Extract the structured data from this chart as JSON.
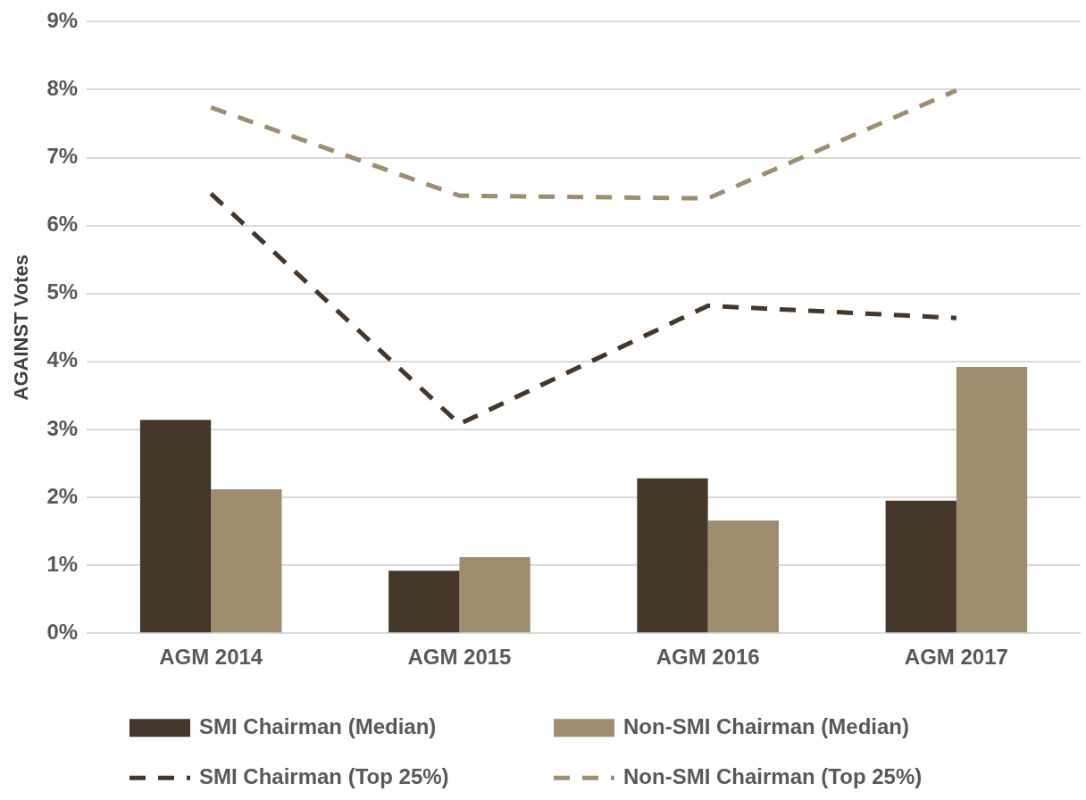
{
  "chart_data": {
    "type": "bar",
    "ylabel": "AGAINST Votes",
    "categories": [
      "AGM 2014",
      "AGM 2015",
      "AGM 2016",
      "AGM 2017"
    ],
    "series": [
      {
        "name": "SMI Chairman (Median)",
        "color": "#45372a",
        "values": [
          3.14,
          0.92,
          2.28,
          1.95
        ]
      },
      {
        "name": "Non-SMI Chairman (Median)",
        "color": "#9e8d6f",
        "values": [
          2.12,
          1.12,
          1.66,
          3.92
        ]
      },
      {
        "name": "SMI Chairman (Top 25%)",
        "type": "line",
        "line_style": "dashed",
        "color": "#45372a",
        "values": [
          6.47,
          3.08,
          4.82,
          4.64
        ]
      },
      {
        "name": "Non-SMI Chairman (Top 25%)",
        "type": "line",
        "line_style": "dashed",
        "color": "#9e8d6f",
        "values": [
          7.74,
          6.44,
          6.4,
          7.99
        ]
      }
    ],
    "ylim": [
      0,
      9
    ],
    "yticks": [
      {
        "value": 0,
        "label": "0%"
      },
      {
        "value": 1,
        "label": "1%"
      },
      {
        "value": 2,
        "label": "2%"
      },
      {
        "value": 3,
        "label": "3%"
      },
      {
        "value": 4,
        "label": "4%"
      },
      {
        "value": 5,
        "label": "5%"
      },
      {
        "value": 6,
        "label": "6%"
      },
      {
        "value": 7,
        "label": "7%"
      },
      {
        "value": 8,
        "label": "8%"
      },
      {
        "value": 9,
        "label": "9%"
      }
    ],
    "grid": "y",
    "legend": "bottom",
    "marker": "none"
  }
}
